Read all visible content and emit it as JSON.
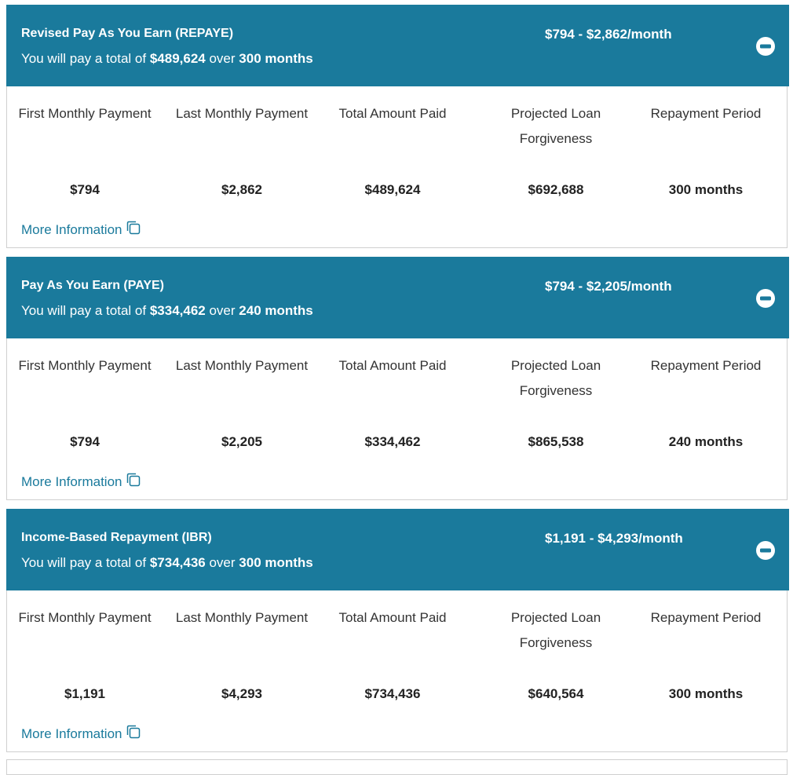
{
  "summary_prefix": "You will pay a total of",
  "summary_over": "over",
  "columns": [
    "First Monthly Payment",
    "Last Monthly Payment",
    "Total Amount Paid",
    "Projected Loan Forgiveness",
    "Repayment Period"
  ],
  "more_info": "More Information",
  "plans": [
    {
      "title": "Revised Pay As You Earn (REPAYE)",
      "range": "$794 - $2,862/month",
      "total": "$489,624",
      "months": "300 months",
      "values": [
        "$794",
        "$2,862",
        "$489,624",
        "$692,688",
        "300 months"
      ]
    },
    {
      "title": "Pay As You Earn (PAYE)",
      "range": "$794 - $2,205/month",
      "total": "$334,462",
      "months": "240 months",
      "values": [
        "$794",
        "$2,205",
        "$334,462",
        "$865,538",
        "240 months"
      ]
    },
    {
      "title": "Income-Based Repayment (IBR)",
      "range": "$1,191 - $4,293/month",
      "total": "$734,436",
      "months": "300 months",
      "values": [
        "$1,191",
        "$4,293",
        "$734,436",
        "$640,564",
        "300 months"
      ]
    }
  ]
}
